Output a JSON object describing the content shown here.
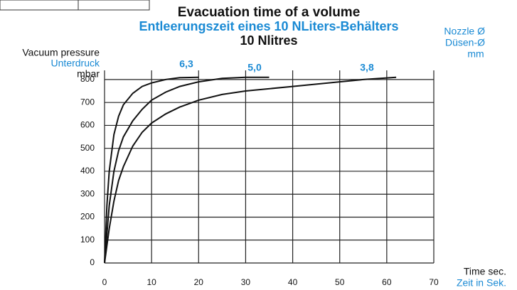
{
  "chart_data": {
    "type": "line",
    "title": "Evacuation time of a volume",
    "subtitle": "Entleerungszeit eines 10 NLiters-Behälters",
    "subtitle2": "10 Nlitres",
    "ylabel": [
      "Vacuum pressure",
      "Unterdruck",
      "mbar"
    ],
    "legend_title": [
      "Nozzle Ø",
      "Düsen-Ø",
      "mm"
    ],
    "xlabel": [
      "Time sec.",
      "Zeit in Sek."
    ],
    "xlim": [
      0,
      70
    ],
    "xticks": [
      0,
      10,
      20,
      30,
      40,
      50,
      60,
      70
    ],
    "ylim": [
      0,
      840
    ],
    "yticks": [
      0,
      100,
      200,
      300,
      400,
      500,
      600,
      700,
      800
    ],
    "grid": true,
    "series": [
      {
        "name": "6,3",
        "color": "#111111",
        "x": [
          0,
          0.5,
          1,
          2,
          3,
          4,
          6,
          8,
          10,
          13,
          16,
          20
        ],
        "values": [
          0,
          250,
          400,
          560,
          640,
          690,
          740,
          770,
          785,
          800,
          808,
          810
        ]
      },
      {
        "name": "5,0",
        "color": "#111111",
        "x": [
          0,
          1,
          2,
          3,
          4,
          6,
          8,
          10,
          13,
          16,
          20,
          25,
          30,
          35
        ],
        "values": [
          0,
          250,
          400,
          490,
          550,
          620,
          670,
          710,
          745,
          770,
          790,
          805,
          810,
          810
        ]
      },
      {
        "name": "3,8",
        "color": "#111111",
        "x": [
          0,
          1,
          2,
          3,
          4,
          6,
          8,
          10,
          13,
          16,
          20,
          25,
          30,
          40,
          50,
          55,
          62
        ],
        "values": [
          0,
          150,
          270,
          360,
          420,
          510,
          570,
          610,
          650,
          680,
          710,
          735,
          750,
          770,
          790,
          800,
          810
        ]
      }
    ]
  }
}
